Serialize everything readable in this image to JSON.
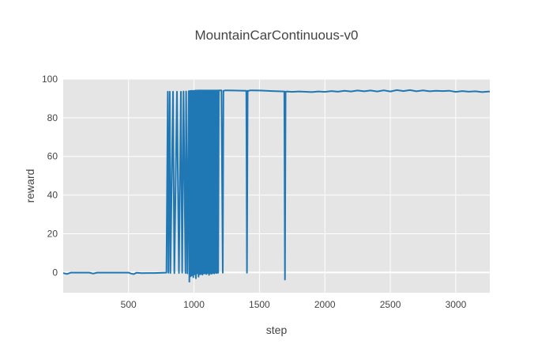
{
  "chart_data": {
    "type": "line",
    "title": "MountainCarContinuous-v0",
    "xlabel": "step",
    "ylabel": "reward",
    "xlim": [
      1,
      3260
    ],
    "ylim": [
      -10.5,
      100
    ],
    "xticks": [
      500,
      1000,
      1500,
      2000,
      2500,
      3000
    ],
    "yticks": [
      0,
      20,
      40,
      60,
      80,
      100
    ],
    "grid": true,
    "legend": "none",
    "colors": {
      "background": "#e5e5e5",
      "grid": "#ffffff",
      "line": "#1f77b4",
      "text": "#444444"
    },
    "series": [
      {
        "x": [
          1,
          30,
          60,
          200,
          230,
          260,
          500,
          520,
          540,
          560,
          600,
          650,
          700,
          790,
          800,
          805,
          815,
          820,
          840,
          850,
          870,
          885,
          900,
          910,
          920,
          935,
          940,
          950,
          960,
          965,
          970,
          975,
          980,
          985,
          990,
          995,
          1000,
          1005,
          1010,
          1015,
          1020,
          1025,
          1030,
          1035,
          1040,
          1045,
          1050,
          1055,
          1060,
          1065,
          1070,
          1075,
          1080,
          1085,
          1090,
          1095,
          1100,
          1105,
          1110,
          1115,
          1120,
          1125,
          1130,
          1135,
          1140,
          1145,
          1150,
          1155,
          1160,
          1165,
          1170,
          1175,
          1180,
          1185,
          1190,
          1200,
          1210,
          1220,
          1225,
          1230,
          1240,
          1300,
          1400,
          1405,
          1410,
          1415,
          1420,
          1430,
          1500,
          1600,
          1690,
          1695,
          1700,
          1705,
          1710,
          1750,
          1800,
          1900,
          1950,
          2000,
          2050,
          2100,
          2150,
          2200,
          2250,
          2300,
          2350,
          2400,
          2450,
          2500,
          2550,
          2600,
          2650,
          2700,
          2750,
          2800,
          2850,
          2900,
          2950,
          3000,
          3050,
          3100,
          3150,
          3200,
          3260
        ],
        "y": [
          -0.3,
          -0.8,
          -0.1,
          -0.1,
          -0.6,
          -0.1,
          -0.1,
          -0.6,
          -0.9,
          -0.2,
          -0.4,
          -0.3,
          -0.3,
          -0.1,
          93.5,
          -0.2,
          93.5,
          -0.3,
          93.5,
          -0.4,
          93.5,
          -0.3,
          93.5,
          -0.2,
          93.6,
          -0.3,
          93.6,
          -0.5,
          93.8,
          -4.8,
          93.9,
          -2.0,
          94.0,
          -1.5,
          94.0,
          -2.5,
          94.0,
          -1.0,
          94.1,
          -3.0,
          94.1,
          -0.5,
          94.2,
          -2.2,
          94.2,
          -1.0,
          94.2,
          -0.8,
          94.2,
          -1.2,
          94.2,
          -0.6,
          94.2,
          -0.5,
          94.2,
          -0.9,
          94.2,
          -0.4,
          94.2,
          -1.3,
          94.2,
          -0.5,
          94.2,
          -0.7,
          94.2,
          -0.3,
          94.2,
          -0.6,
          94.2,
          -0.2,
          94.2,
          -0.4,
          94.2,
          -0.2,
          94.2,
          94.2,
          94.2,
          -0.2,
          94.0,
          94.0,
          94.2,
          94.1,
          94.0,
          -0.2,
          94.0,
          93.8,
          94.0,
          94.2,
          94.1,
          93.8,
          93.6,
          -3.7,
          93.5,
          93.5,
          93.6,
          93.4,
          93.6,
          93.3,
          93.6,
          93.4,
          93.8,
          93.5,
          94.0,
          93.6,
          94.1,
          93.7,
          94.1,
          93.6,
          94.2,
          93.6,
          94.3,
          93.8,
          94.3,
          93.7,
          94.2,
          93.7,
          94.0,
          93.8,
          94.0,
          93.4,
          93.8,
          93.5,
          93.7,
          93.3,
          93.6
        ]
      }
    ]
  }
}
